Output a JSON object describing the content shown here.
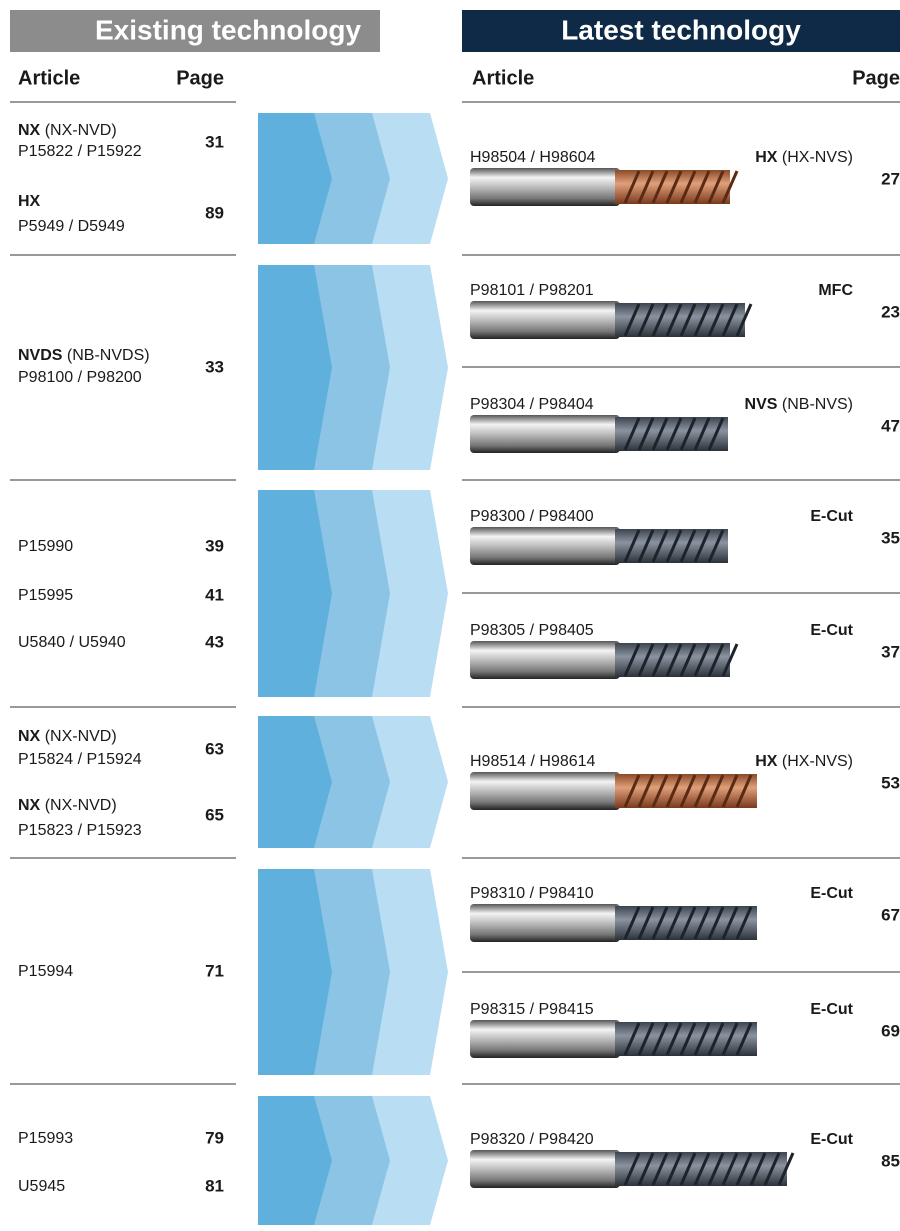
{
  "headers": {
    "existing": "Existing technology",
    "latest": "Latest technology"
  },
  "columns": {
    "existing_article": "Article",
    "existing_page": "Page",
    "latest_article": "Article",
    "latest_page": "Page"
  },
  "groups": [
    {
      "existing": [
        {
          "name": "NX",
          "type": "(NX-NVD)",
          "article": "P15822 / P15922",
          "page": 31
        },
        {
          "name": "HX",
          "article": "P5949 / D5949",
          "page": 89
        }
      ],
      "latest": [
        {
          "article": "H98504 / H98604",
          "name": "HX",
          "type": "(HX-NVS)",
          "page": 27
        }
      ]
    },
    {
      "existing": [
        {
          "name": "NVDS",
          "type": "(NB-NVDS)",
          "article": "P98100 / P98200",
          "page": 33
        }
      ],
      "latest": [
        {
          "article": "P98101 / P98201",
          "name": "MFC",
          "page": 23
        },
        {
          "article": "P98304 / P98404",
          "name": "NVS",
          "type": "(NB-NVS)",
          "page": 47
        }
      ]
    },
    {
      "existing": [
        {
          "article": "P15990",
          "page": 39
        },
        {
          "article": "P15995",
          "page": 41
        },
        {
          "article": "U5840 / U5940",
          "page": 43
        }
      ],
      "latest": [
        {
          "article": "P98300 / P98400",
          "name": "E-Cut",
          "page": 35
        },
        {
          "article": "P98305 / P98405",
          "name": "E-Cut",
          "page": 37
        }
      ]
    },
    {
      "existing": [
        {
          "name": "NX",
          "type": "(NX-NVD)",
          "article": "P15824 / P15924",
          "page": 63
        },
        {
          "name": "NX",
          "type": "(NX-NVD)",
          "article": "P15823 / P15923",
          "page": 65
        }
      ],
      "latest": [
        {
          "article": "H98514 / H98614",
          "name": "HX",
          "type": "(HX-NVS)",
          "page": 53
        }
      ]
    },
    {
      "existing": [
        {
          "article": "P15994",
          "page": 71
        }
      ],
      "latest": [
        {
          "article": "P98310 / P98410",
          "name": "E-Cut",
          "page": 67
        },
        {
          "article": "P98315 / P98415",
          "name": "E-Cut",
          "page": 69
        }
      ]
    },
    {
      "existing": [
        {
          "article": "P15993",
          "page": 79
        },
        {
          "article": "U5945",
          "page": 81
        }
      ],
      "latest": [
        {
          "article": "P98320 / P98420",
          "name": "E-Cut",
          "page": 85
        }
      ]
    }
  ]
}
